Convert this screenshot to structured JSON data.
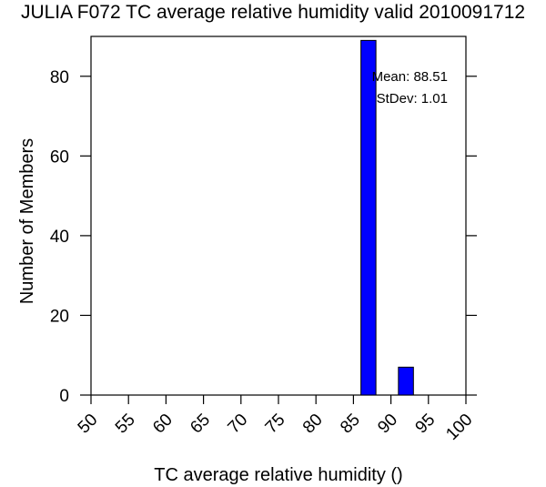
{
  "chart_data": {
    "type": "bar",
    "title": "JULIA F072 TC average relative humidity valid 2010091712",
    "xlabel": "TC average relative humidity ()",
    "ylabel": "Number of Members",
    "xlim": [
      50,
      100
    ],
    "ylim": [
      0,
      90
    ],
    "x_ticks": [
      "50",
      "55",
      "60",
      "65",
      "70",
      "75",
      "80",
      "85",
      "90",
      "95",
      "100"
    ],
    "y_ticks": [
      "0",
      "20",
      "40",
      "60",
      "80"
    ],
    "bars": [
      {
        "x0": 86,
        "x1": 88,
        "value": 89
      },
      {
        "x0": 91,
        "x1": 93,
        "value": 7
      }
    ],
    "bar_color": "#0000ff",
    "grid": false,
    "annotations": [
      "Mean: 88.51",
      "StDev: 1.01"
    ]
  }
}
